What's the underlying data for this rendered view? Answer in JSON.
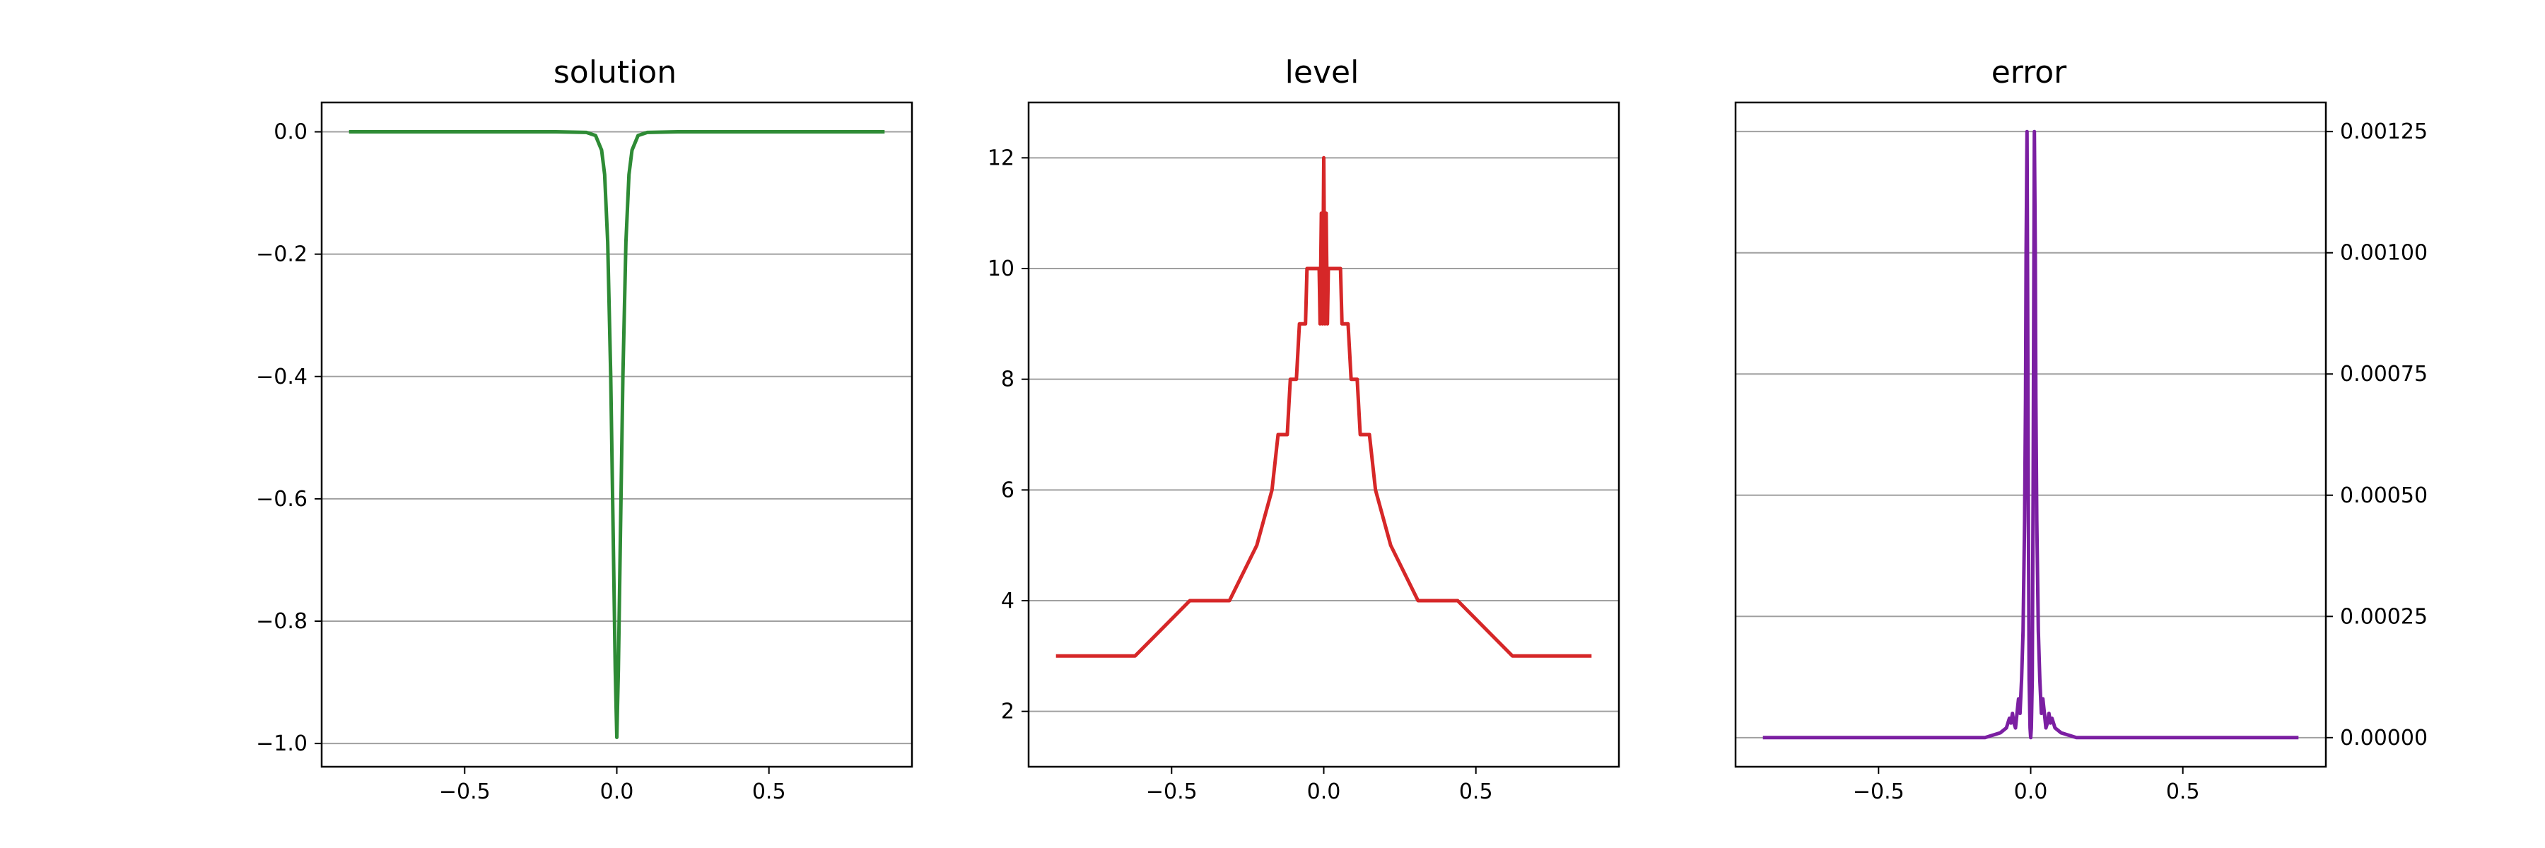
{
  "colors": {
    "solution": "#2e8b35",
    "level": "#d62728",
    "error": "#7b1fa2",
    "grid": "#a0a0a0",
    "axes": "#000000"
  },
  "chart_data": [
    {
      "type": "line",
      "title": "solution",
      "xlabel": "",
      "ylabel": "",
      "xlim": [
        -0.97,
        0.97
      ],
      "ylim": [
        -1.038,
        0.048
      ],
      "xticks": [
        -0.5,
        0.0,
        0.5
      ],
      "xtick_labels": [
        "−0.5",
        "0.0",
        "0.5"
      ],
      "yticks": [
        0.0,
        -0.2,
        -0.4,
        -0.6,
        -0.8,
        -1.0
      ],
      "ytick_labels": [
        "0.0",
        "−0.2",
        "−0.4",
        "−0.6",
        "−0.8",
        "−1.0"
      ],
      "yaxis_side": "left",
      "grid": "horizontal",
      "series": [
        {
          "color_key": "solution",
          "x": [
            -0.88,
            -0.2,
            -0.1,
            -0.07,
            -0.05,
            -0.04,
            -0.03,
            -0.02,
            -0.01,
            -0.005,
            0.0,
            0.005,
            0.01,
            0.02,
            0.03,
            0.04,
            0.05,
            0.07,
            0.1,
            0.2,
            0.88
          ],
          "y": [
            0.0,
            0.0,
            -0.001,
            -0.006,
            -0.03,
            -0.07,
            -0.18,
            -0.4,
            -0.72,
            -0.88,
            -0.99,
            -0.88,
            -0.72,
            -0.4,
            -0.18,
            -0.07,
            -0.03,
            -0.006,
            -0.001,
            0.0,
            0.0
          ]
        }
      ]
    },
    {
      "type": "line",
      "title": "level",
      "xlabel": "",
      "ylabel": "",
      "xlim": [
        -0.97,
        0.97
      ],
      "ylim": [
        1.0,
        13.0
      ],
      "xticks": [
        -0.5,
        0.0,
        0.5
      ],
      "xtick_labels": [
        "−0.5",
        "0.0",
        "0.5"
      ],
      "yticks": [
        2,
        4,
        6,
        8,
        10,
        12
      ],
      "ytick_labels": [
        "2",
        "4",
        "6",
        "8",
        "10",
        "12"
      ],
      "yaxis_side": "left",
      "grid": "horizontal",
      "series": [
        {
          "color_key": "level",
          "x": [
            -0.88,
            -0.62,
            -0.44,
            -0.31,
            -0.22,
            -0.17,
            -0.15,
            -0.12,
            -0.11,
            -0.09,
            -0.08,
            -0.06,
            -0.055,
            -0.04,
            -0.035,
            -0.015,
            -0.012,
            -0.008,
            -0.004,
            0.0,
            0.004,
            0.008,
            0.012,
            0.015,
            0.035,
            0.04,
            0.055,
            0.06,
            0.08,
            0.09,
            0.11,
            0.12,
            0.15,
            0.17,
            0.22,
            0.31,
            0.44,
            0.62,
            0.88
          ],
          "y": [
            3,
            3,
            4,
            4,
            5,
            6,
            7,
            7,
            8,
            8,
            9,
            9,
            10,
            10,
            10,
            10,
            9,
            11,
            9,
            12,
            9,
            11,
            9,
            10,
            10,
            10,
            10,
            9,
            9,
            8,
            8,
            7,
            7,
            6,
            5,
            4,
            4,
            3,
            3
          ]
        }
      ]
    },
    {
      "type": "line",
      "title": "error",
      "xlabel": "",
      "ylabel": "",
      "xlim": [
        -0.97,
        0.97
      ],
      "ylim": [
        -6e-05,
        0.00131
      ],
      "xticks": [
        -0.5,
        0.0,
        0.5
      ],
      "xtick_labels": [
        "−0.5",
        "0.0",
        "0.5"
      ],
      "yticks": [
        0.0,
        0.00025,
        0.0005,
        0.00075,
        0.001,
        0.00125
      ],
      "ytick_labels": [
        "0.00000",
        "0.00025",
        "0.00050",
        "0.00075",
        "0.00100",
        "0.00125"
      ],
      "yaxis_side": "right",
      "grid": "horizontal",
      "series": [
        {
          "color_key": "error",
          "x": [
            -0.88,
            -0.15,
            -0.1,
            -0.08,
            -0.07,
            -0.065,
            -0.06,
            -0.055,
            -0.05,
            -0.045,
            -0.04,
            -0.035,
            -0.03,
            -0.025,
            -0.02,
            -0.017,
            -0.015,
            -0.012,
            -0.01,
            -0.008,
            -0.005,
            -0.002,
            0.0,
            0.002,
            0.005,
            0.008,
            0.01,
            0.012,
            0.015,
            0.017,
            0.02,
            0.025,
            0.03,
            0.035,
            0.04,
            0.045,
            0.05,
            0.055,
            0.06,
            0.065,
            0.07,
            0.08,
            0.1,
            0.15,
            0.88
          ],
          "y": [
            0.0,
            0.0,
            1e-05,
            2e-05,
            4e-05,
            3e-05,
            5e-05,
            3e-05,
            2e-05,
            5e-05,
            8e-05,
            5e-05,
            0.00012,
            0.00022,
            0.00045,
            0.0007,
            0.001,
            0.00125,
            0.0009,
            0.0005,
            0.00012,
            2e-05,
            0.0,
            2e-05,
            0.00012,
            0.0005,
            0.0009,
            0.00125,
            0.001,
            0.0007,
            0.00045,
            0.00022,
            0.00012,
            5e-05,
            8e-05,
            5e-05,
            2e-05,
            3e-05,
            5e-05,
            3e-05,
            4e-05,
            2e-05,
            1e-05,
            0.0,
            0.0
          ]
        }
      ]
    }
  ]
}
